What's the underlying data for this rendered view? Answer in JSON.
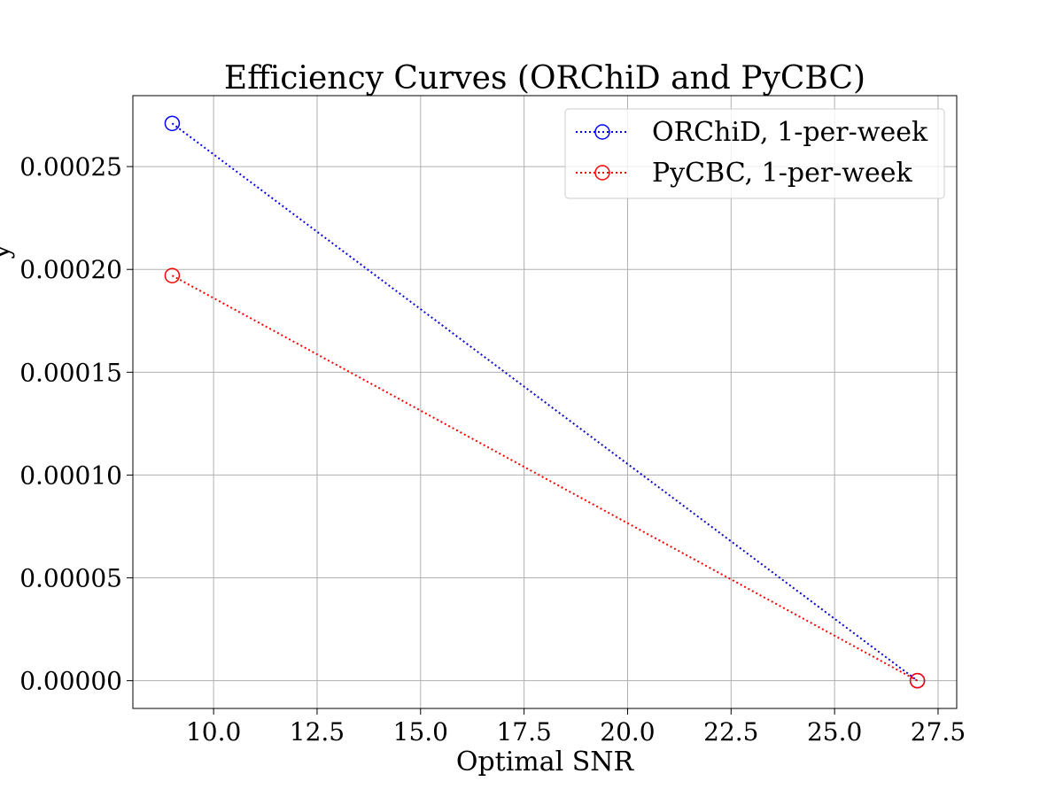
{
  "chart_data": {
    "type": "line",
    "title": "Efficiency Curves (ORChiD and PyCBC)",
    "xlabel": "Optimal SNR",
    "ylabel": "y",
    "xlim": [
      8.05,
      27.95
    ],
    "ylim": [
      -1.35e-05,
      0.0002845
    ],
    "xticks": [
      10.0,
      12.5,
      15.0,
      17.5,
      20.0,
      22.5,
      25.0,
      27.5
    ],
    "xtick_labels": [
      "10.0",
      "12.5",
      "15.0",
      "17.5",
      "20.0",
      "22.5",
      "25.0",
      "27.5"
    ],
    "yticks": [
      0,
      5e-05,
      0.0001,
      0.00015,
      0.0002,
      0.00025
    ],
    "ytick_labels": [
      "0.00000",
      "0.00005",
      "0.00010",
      "0.00015",
      "0.00020",
      "0.00025"
    ],
    "grid": true,
    "legend_position": "top-right",
    "series": [
      {
        "name": "ORChiD, 1-per-week",
        "color": "#0000ff",
        "line_style": "dotted",
        "marker": "open-circle",
        "x": [
          9,
          27
        ],
        "y": [
          0.000271,
          0.0
        ]
      },
      {
        "name": "PyCBC, 1-per-week",
        "color": "#ff0000",
        "line_style": "dotted",
        "marker": "open-circle",
        "x": [
          9,
          27
        ],
        "y": [
          0.000197,
          0.0
        ]
      }
    ]
  }
}
